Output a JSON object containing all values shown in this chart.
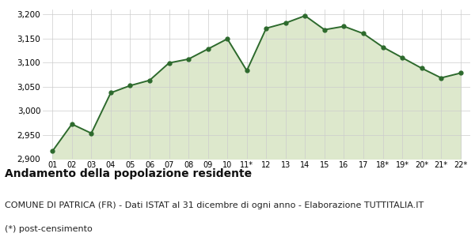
{
  "x_labels": [
    "01",
    "02",
    "03",
    "04",
    "05",
    "06",
    "07",
    "08",
    "09",
    "10",
    "11*",
    "12",
    "13",
    "14",
    "15",
    "16",
    "17",
    "18*",
    "19*",
    "20*",
    "21*",
    "22*"
  ],
  "y_values": [
    2916,
    2972,
    2953,
    3037,
    3052,
    3063,
    3099,
    3107,
    3128,
    3149,
    3083,
    3171,
    3182,
    3197,
    3168,
    3175,
    3160,
    3132,
    3110,
    3088,
    3068,
    3078
  ],
  "line_color": "#2d6a2d",
  "fill_color": "#dde8cc",
  "marker_color": "#2d6a2d",
  "bg_color": "#ffffff",
  "grid_color": "#cccccc",
  "ylim": [
    2900,
    3210
  ],
  "yticks": [
    2900,
    2950,
    3000,
    3050,
    3100,
    3150,
    3200
  ],
  "title": "Andamento della popolazione residente",
  "subtitle": "COMUNE DI PATRICA (FR) - Dati ISTAT al 31 dicembre di ogni anno - Elaborazione TUTTITALIA.IT",
  "footnote": "(*) post-censimento",
  "title_fontsize": 10,
  "subtitle_fontsize": 8,
  "footnote_fontsize": 8
}
